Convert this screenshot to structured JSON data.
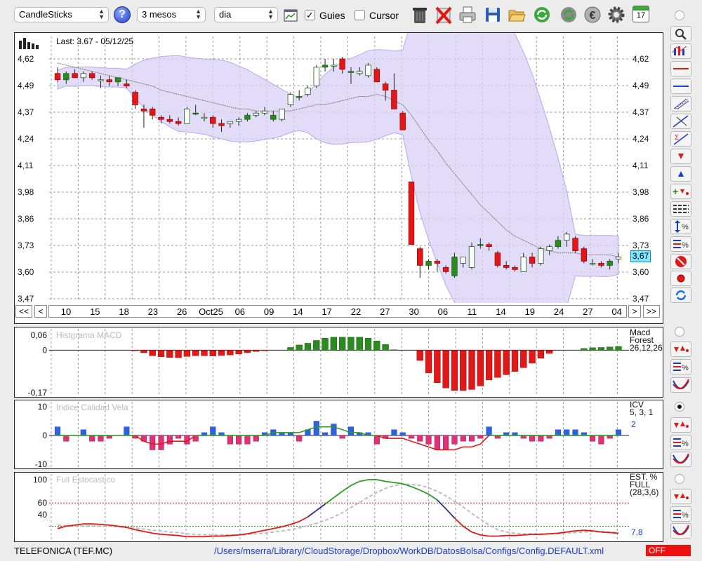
{
  "toolbar": {
    "chart_type": "CandleSticks",
    "period": "3 mesos",
    "interval": "dia",
    "guies_label": "Guies",
    "guies_checked": true,
    "cursor_label": "Cursor",
    "cursor_checked": false,
    "calendar_day": "17",
    "icons": [
      "help-icon",
      "chart-settings-icon",
      "trash-icon",
      "delete-icon",
      "print-icon",
      "save-icon",
      "open-folder-icon",
      "refresh-icon",
      "update-icon",
      "euro-icon",
      "gear-icon",
      "calendar-icon"
    ]
  },
  "main": {
    "last_label": "Last: 3.67 - 05/12/25",
    "y_ticks": [
      "4,62",
      "4,49",
      "4,37",
      "4,24",
      "4,11",
      "3,98",
      "3,86",
      "3,73",
      "3,60",
      "3,47"
    ],
    "price_tag": "3,67",
    "nav": {
      "first": "<<",
      "prev": "<",
      "next": ">",
      "last": ">>"
    },
    "date_labels": [
      "10",
      "15",
      "18",
      "23",
      "26",
      "Oct25",
      "06",
      "09",
      "14",
      "17",
      "22",
      "27",
      "30",
      "06",
      "11",
      "14",
      "19",
      "24",
      "27",
      "04"
    ]
  },
  "macd": {
    "title": "Histgrama MACD",
    "y_ticks": [
      "0,06",
      "0",
      "-0,17"
    ],
    "label1": "Macd",
    "label2": "Forest",
    "params": "26,12,26"
  },
  "icv": {
    "title": "Indice Calidad Vela",
    "y_ticks": [
      "10",
      "0",
      "-10"
    ],
    "label": "ICV",
    "params": "5, 3, 1",
    "value": "2"
  },
  "stoch": {
    "title": "Full Estocastico",
    "y_ticks": [
      "100",
      "60",
      "40"
    ],
    "label1": "EST. %",
    "label2": "FULL",
    "params": "(28,3,6)",
    "value": "7,8"
  },
  "status": {
    "ticker": "TELEFONICA (TEF.MC)",
    "path": "/Users/mserra/Library/CloudStorage/Dropbox/WorkDB/DatosBolsa/Configs/Config.DEFAULT.xml",
    "off_label": "OFF"
  },
  "colors": {
    "up": "#2a8c1e",
    "down": "#e01818",
    "band": "#d8d0f5",
    "accent_blue": "#1a3ccc",
    "status_red": "#ee1111"
  },
  "chart_data": [
    {
      "type": "candlestick",
      "title": "",
      "last": "3.67 - 05/12/25",
      "ylim": [
        3.47,
        4.62
      ],
      "ohlc": [
        [
          4.55,
          4.58,
          4.51,
          4.52
        ],
        [
          4.52,
          4.56,
          4.5,
          4.55
        ],
        [
          4.55,
          4.57,
          4.53,
          4.53
        ],
        [
          4.53,
          4.56,
          4.51,
          4.55
        ],
        [
          4.55,
          4.56,
          4.52,
          4.53
        ],
        [
          4.52,
          4.54,
          4.48,
          4.52
        ],
        [
          4.52,
          4.54,
          4.49,
          4.51
        ],
        [
          4.51,
          4.53,
          4.49,
          4.53
        ],
        [
          4.5,
          4.52,
          4.48,
          4.49
        ],
        [
          4.46,
          4.47,
          4.38,
          4.4
        ],
        [
          4.38,
          4.4,
          4.29,
          4.37
        ],
        [
          4.38,
          4.39,
          4.33,
          4.35
        ],
        [
          4.34,
          4.35,
          4.31,
          4.33
        ],
        [
          4.33,
          4.35,
          4.31,
          4.32
        ],
        [
          4.32,
          4.34,
          4.3,
          4.31
        ],
        [
          4.31,
          4.39,
          4.31,
          4.38
        ],
        [
          4.36,
          4.4,
          4.35,
          4.36
        ],
        [
          4.34,
          4.36,
          4.32,
          4.34
        ],
        [
          4.34,
          4.35,
          4.29,
          4.31
        ],
        [
          4.31,
          4.33,
          4.27,
          4.3
        ],
        [
          4.31,
          4.32,
          4.29,
          4.32
        ],
        [
          4.32,
          4.34,
          4.3,
          4.33
        ],
        [
          4.33,
          4.36,
          4.32,
          4.35
        ],
        [
          4.35,
          4.37,
          4.34,
          4.36
        ],
        [
          4.36,
          4.39,
          4.35,
          4.37
        ],
        [
          4.33,
          4.37,
          4.32,
          4.35
        ],
        [
          4.33,
          4.38,
          4.32,
          4.38
        ],
        [
          4.4,
          4.46,
          4.39,
          4.45
        ],
        [
          4.44,
          4.47,
          4.42,
          4.44
        ],
        [
          4.45,
          4.49,
          4.44,
          4.48
        ],
        [
          4.49,
          4.59,
          4.48,
          4.58
        ],
        [
          4.58,
          4.62,
          4.56,
          4.59
        ],
        [
          4.59,
          4.62,
          4.56,
          4.59
        ],
        [
          4.62,
          4.63,
          4.55,
          4.57
        ],
        [
          4.56,
          4.58,
          4.5,
          4.56
        ],
        [
          4.55,
          4.58,
          4.54,
          4.56
        ],
        [
          4.54,
          4.6,
          4.53,
          4.59
        ],
        [
          4.57,
          4.58,
          4.51,
          4.51
        ],
        [
          4.5,
          4.51,
          4.42,
          4.47
        ],
        [
          4.47,
          4.55,
          4.39,
          4.38
        ],
        [
          4.36,
          4.37,
          4.28,
          4.28
        ],
        [
          4.03,
          4.03,
          3.73,
          3.73
        ],
        [
          3.71,
          3.72,
          3.57,
          3.63
        ],
        [
          3.63,
          3.66,
          3.61,
          3.65
        ],
        [
          3.65,
          3.66,
          3.6,
          3.64
        ],
        [
          3.62,
          3.63,
          3.59,
          3.6
        ],
        [
          3.58,
          3.69,
          3.57,
          3.67
        ],
        [
          3.64,
          3.67,
          3.62,
          3.67
        ],
        [
          3.62,
          3.74,
          3.61,
          3.72
        ],
        [
          3.73,
          3.76,
          3.71,
          3.73
        ],
        [
          3.73,
          3.74,
          3.7,
          3.72
        ],
        [
          3.69,
          3.7,
          3.62,
          3.63
        ],
        [
          3.63,
          3.65,
          3.61,
          3.62
        ],
        [
          3.62,
          3.63,
          3.6,
          3.61
        ],
        [
          3.6,
          3.69,
          3.6,
          3.67
        ],
        [
          3.67,
          3.69,
          3.62,
          3.64
        ],
        [
          3.64,
          3.72,
          3.63,
          3.71
        ],
        [
          3.7,
          3.73,
          3.68,
          3.72
        ],
        [
          3.72,
          3.77,
          3.71,
          3.75
        ],
        [
          3.75,
          3.79,
          3.72,
          3.78
        ],
        [
          3.76,
          3.77,
          3.69,
          3.7
        ],
        [
          3.71,
          3.72,
          3.64,
          3.65
        ],
        [
          3.64,
          3.66,
          3.63,
          3.64
        ],
        [
          3.64,
          3.65,
          3.62,
          3.63
        ],
        [
          3.63,
          3.66,
          3.61,
          3.65
        ],
        [
          3.66,
          3.69,
          3.64,
          3.67
        ]
      ],
      "series": [
        {
          "name": "",
          "values": [
            4.6,
            4.59,
            4.58,
            4.57,
            4.56,
            4.55,
            4.54,
            4.53,
            4.52,
            4.51,
            4.5,
            4.49,
            4.47,
            4.46,
            4.45,
            4.44,
            4.43,
            4.42,
            4.41,
            4.4,
            4.39,
            4.38,
            4.38,
            4.37,
            4.37,
            4.37,
            4.37,
            4.37,
            4.38,
            4.39,
            4.4,
            4.4,
            4.41,
            4.42,
            4.43,
            4.44,
            4.44,
            4.45,
            4.44,
            4.42,
            4.4,
            4.35,
            4.29,
            4.23,
            4.18,
            4.12,
            4.07,
            4.02,
            3.97,
            3.92,
            3.88,
            3.84,
            3.8,
            3.77,
            3.75,
            3.73,
            3.71,
            3.7,
            3.69,
            3.69,
            3.69,
            3.68,
            3.68,
            3.68,
            3.68,
            3.67
          ]
        }
      ]
    },
    {
      "type": "bar",
      "title": "Histgrama MACD",
      "ylim": [
        -0.17,
        0.06
      ],
      "values": [
        0,
        0,
        0,
        0,
        0,
        0,
        0,
        0,
        0,
        -0.002,
        -0.01,
        -0.022,
        -0.026,
        -0.029,
        -0.03,
        -0.025,
        -0.022,
        -0.022,
        -0.023,
        -0.021,
        -0.019,
        -0.015,
        -0.01,
        -0.005,
        -0.002,
        0,
        0,
        0.011,
        0.021,
        0.028,
        0.039,
        0.048,
        0.052,
        0.052,
        0.052,
        0.052,
        0.048,
        0.037,
        0.023,
        0.002,
        0,
        0,
        -0.041,
        -0.091,
        -0.13,
        -0.151,
        -0.161,
        -0.161,
        -0.157,
        -0.143,
        -0.119,
        -0.109,
        -0.098,
        -0.085,
        -0.07,
        -0.052,
        -0.032,
        -0.013,
        0,
        0,
        0,
        0.007,
        0.01,
        0.011,
        0.013,
        0.015
      ]
    },
    {
      "type": "bar",
      "title": "Indice Calidad Vela",
      "ylim": [
        -10,
        10
      ],
      "values": [
        3,
        -2,
        0,
        2,
        -2,
        -2,
        -1,
        0,
        3,
        -1,
        -2,
        -5,
        -5,
        -3,
        -1,
        -3,
        -2,
        1,
        3,
        1,
        -3,
        -3,
        -3,
        -2,
        1,
        2,
        1,
        1,
        -2,
        2,
        5,
        1,
        4,
        -1,
        3,
        1,
        1,
        -3,
        -1,
        2,
        1,
        -1,
        -2,
        -3,
        -5,
        -5,
        -3,
        -2,
        -2,
        -1,
        3,
        -1,
        1,
        1,
        -1,
        -2,
        -2,
        -1,
        2,
        2,
        2,
        1,
        -2,
        -3,
        -1,
        2
      ],
      "series": [
        {
          "name": "",
          "values": [
            0,
            0,
            0,
            0,
            0,
            0,
            0,
            0,
            0,
            0,
            -2,
            -3,
            -3,
            -2,
            -2,
            -2,
            0,
            0,
            0,
            0,
            0,
            0,
            0,
            0,
            0,
            1,
            1,
            1,
            1,
            2,
            3,
            3,
            3,
            2,
            1,
            1,
            0,
            0,
            -1,
            -1,
            -1,
            -2,
            -3,
            -4,
            -5,
            -5,
            -5,
            -4,
            -4,
            -3,
            0,
            0,
            0,
            0,
            0,
            0,
            0,
            0,
            0,
            0,
            0,
            0,
            0,
            0,
            0,
            0
          ]
        }
      ]
    },
    {
      "type": "line",
      "title": "Full Estocastico",
      "ylim": [
        0,
        100
      ],
      "series": [
        {
          "name": "",
          "values": [
            16,
            20,
            22,
            24,
            24,
            23,
            22,
            20,
            18,
            14,
            11,
            8,
            6,
            5,
            4,
            2,
            2,
            2,
            3,
            3,
            4,
            5,
            7,
            10,
            13,
            16,
            19,
            23,
            28,
            36,
            47,
            58,
            69,
            80,
            90,
            97,
            100,
            100,
            97,
            95,
            93,
            88,
            82,
            75,
            65,
            50,
            34,
            20,
            10,
            5,
            3,
            3,
            4,
            4,
            5,
            6,
            6,
            7,
            8,
            10,
            12,
            13,
            12,
            10,
            9,
            8
          ]
        },
        {
          "name": "",
          "values": [
            22,
            21,
            20,
            20,
            20,
            20,
            20,
            19,
            18,
            17,
            15,
            13,
            12,
            10,
            9,
            7,
            6,
            5,
            5,
            5,
            5,
            5,
            6,
            7,
            8,
            10,
            12,
            14,
            17,
            21,
            25,
            30,
            36,
            43,
            52,
            61,
            70,
            78,
            85,
            90,
            92,
            92,
            90,
            86,
            80,
            72,
            63,
            53,
            42,
            32,
            22,
            14,
            10,
            8,
            7,
            7,
            7,
            7,
            7,
            8,
            9,
            10,
            11,
            11,
            10,
            9
          ]
        }
      ]
    }
  ]
}
